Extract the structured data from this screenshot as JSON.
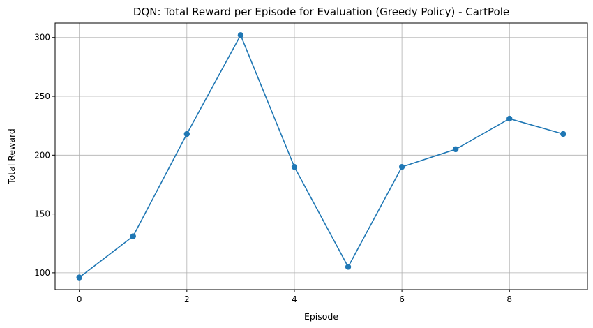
{
  "chart_data": {
    "type": "line",
    "title": "DQN: Total Reward per Episode for Evaluation (Greedy Policy) - CartPole",
    "xlabel": "Episode",
    "ylabel": "Total Reward",
    "x": [
      0,
      1,
      2,
      3,
      4,
      5,
      6,
      7,
      8,
      9
    ],
    "series": [
      {
        "values": [
          96,
          131,
          218,
          302,
          190,
          105,
          190,
          205,
          231,
          218
        ],
        "color": "#1f77b4",
        "marker": "circle"
      }
    ],
    "xlim": [
      -0.45,
      9.45
    ],
    "ylim": [
      85.7,
      312.3
    ],
    "xticks": [
      0,
      2,
      4,
      6,
      8
    ],
    "yticks": [
      100,
      150,
      200,
      250,
      300
    ],
    "grid": true,
    "legend": "none"
  }
}
